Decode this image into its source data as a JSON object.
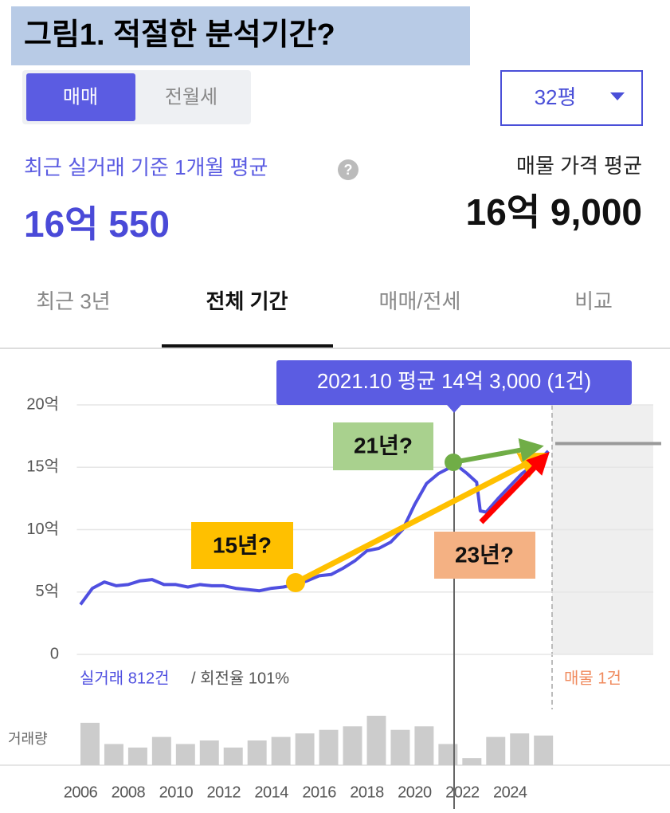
{
  "header": {
    "title": "그림1. 적절한 분석기간?"
  },
  "toggle": [
    "매매",
    "전월세"
  ],
  "size_select": "32평",
  "summary": {
    "recent_label": "최근 실거래 기준 1개월 평균",
    "recent_value": "16억 550",
    "listing_label": "매물 가격 평균",
    "listing_value": "16억 9,000"
  },
  "tabs": [
    "최근 3년",
    "전체 기간",
    "매매/전세",
    "비교"
  ],
  "chart_data": {
    "type": "line",
    "color": "#4f4fe0",
    "x": [
      2006.0,
      2006.5,
      2007,
      2007.5,
      2008,
      2008.5,
      2009,
      2009.5,
      2010,
      2010.5,
      2011,
      2011.5,
      2012,
      2012.5,
      2013,
      2013.5,
      2014,
      2014.5,
      2015,
      2015.5,
      2016,
      2016.5,
      2017,
      2017.5,
      2018,
      2018.5,
      2019,
      2019.5,
      2020,
      2020.5,
      2021,
      2021.5,
      2021.8,
      2022.2,
      2022.6,
      2022.75,
      2023,
      2023.5,
      2024,
      2024.5,
      2025,
      2025.6
    ],
    "values": [
      4.0,
      5.3,
      5.8,
      5.5,
      5.6,
      5.9,
      6.0,
      5.6,
      5.6,
      5.4,
      5.6,
      5.5,
      5.5,
      5.3,
      5.2,
      5.1,
      5.3,
      5.4,
      5.6,
      5.9,
      6.3,
      6.4,
      6.9,
      7.5,
      8.3,
      8.5,
      9.0,
      10.0,
      12.0,
      13.7,
      14.5,
      15.0,
      15.1,
      14.5,
      13.8,
      11.5,
      11.4,
      12.5,
      13.5,
      14.5,
      15.2,
      16.3
    ],
    "xlim": [
      2005.85,
      2030.0
    ],
    "xticks": [
      2006,
      2008,
      2010,
      2012,
      2014,
      2016,
      2018,
      2020,
      2022,
      2024
    ],
    "ylim": [
      0,
      20
    ],
    "yticks": [
      0,
      {
        "value": 5,
        "label": "5억"
      },
      {
        "value": 10,
        "label": "10억"
      },
      {
        "value": 15,
        "label": "15억"
      },
      {
        "value": 20,
        "label": "20억"
      }
    ],
    "grid": true,
    "tooltip": "2021.10 평균 14억 3,000 (1건)",
    "stats": [
      "실거래 812건",
      "/ 회전율 101%"
    ],
    "listing": {
      "label": "매물 1건",
      "value": 16.9,
      "color": "#999999"
    },
    "volume": {
      "label": "거래량",
      "color": "#cccccc",
      "x": [
        2006,
        2007,
        2008,
        2009,
        2010,
        2011,
        2012,
        2013,
        2014,
        2015,
        2016,
        2017,
        2018,
        2019,
        2020,
        2021,
        2022,
        2023,
        2024,
        2025
      ],
      "values": [
        60,
        30,
        25,
        40,
        30,
        35,
        25,
        35,
        40,
        45,
        50,
        55,
        70,
        50,
        55,
        30,
        10,
        40,
        45,
        42
      ]
    },
    "annotations": [
      "15년?",
      "21년?",
      "23년?"
    ]
  }
}
